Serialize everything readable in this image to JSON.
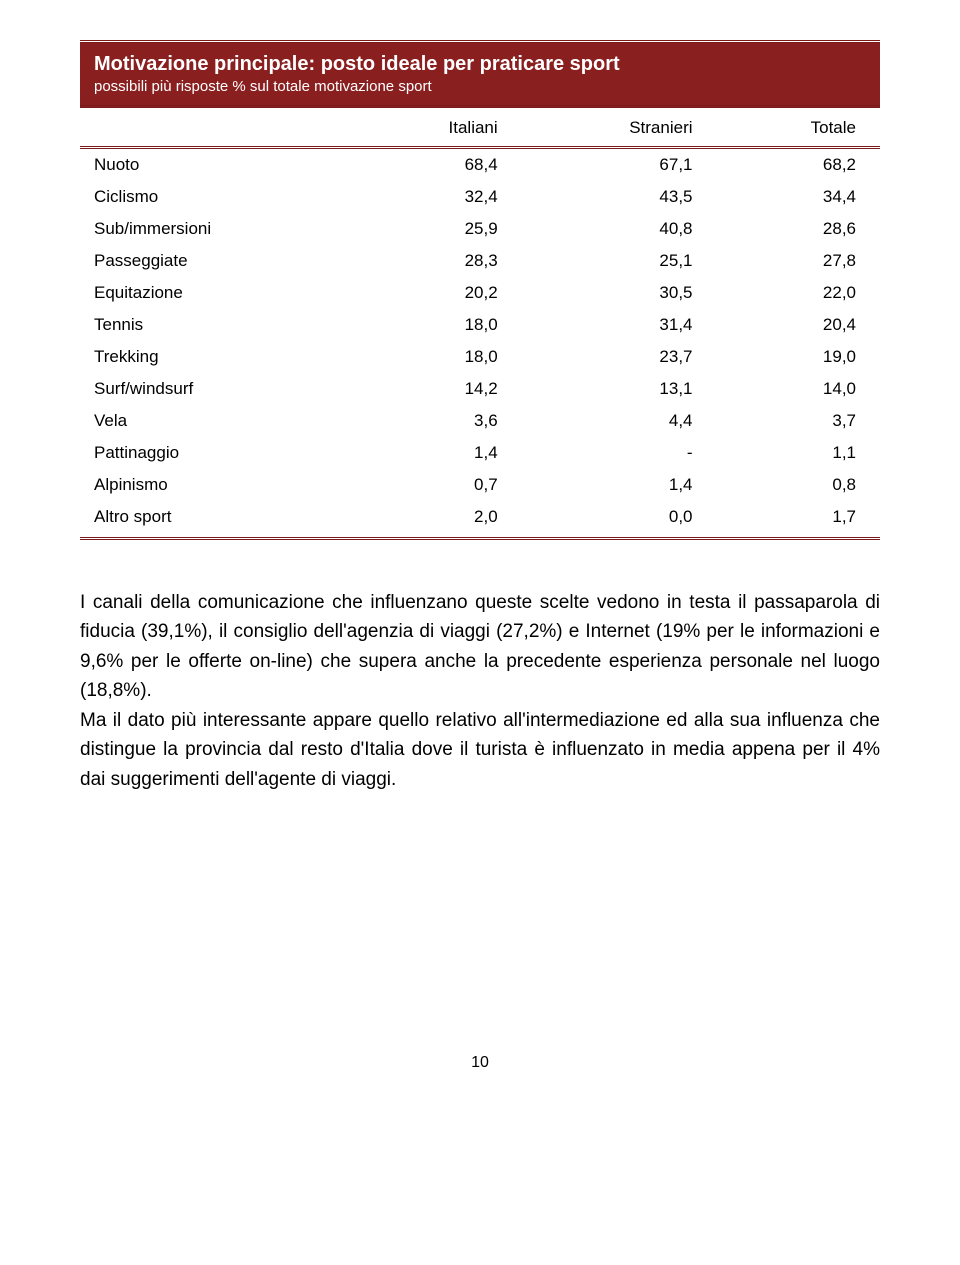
{
  "card": {
    "title": "Motivazione principale: posto ideale per praticare sport",
    "subtitle": "possibili più risposte % sul totale motivazione sport",
    "header_bg": "#8a1f1f",
    "header_fg": "#ffffff",
    "rule_color": "#7a1a1a",
    "columns": [
      "",
      "Italiani",
      "Stranieri",
      "Totale"
    ],
    "rows": [
      {
        "label": "Nuoto",
        "cells": [
          "68,4",
          "67,1",
          "68,2"
        ]
      },
      {
        "label": "Ciclismo",
        "cells": [
          "32,4",
          "43,5",
          "34,4"
        ]
      },
      {
        "label": "Sub/immersioni",
        "cells": [
          "25,9",
          "40,8",
          "28,6"
        ]
      },
      {
        "label": "Passeggiate",
        "cells": [
          "28,3",
          "25,1",
          "27,8"
        ]
      },
      {
        "label": "Equitazione",
        "cells": [
          "20,2",
          "30,5",
          "22,0"
        ]
      },
      {
        "label": "Tennis",
        "cells": [
          "18,0",
          "31,4",
          "20,4"
        ]
      },
      {
        "label": "Trekking",
        "cells": [
          "18,0",
          "23,7",
          "19,0"
        ]
      },
      {
        "label": "Surf/windsurf",
        "cells": [
          "14,2",
          "13,1",
          "14,0"
        ]
      },
      {
        "label": "Vela",
        "cells": [
          "3,6",
          "4,4",
          "3,7"
        ]
      },
      {
        "label": "Pattinaggio",
        "cells": [
          "1,4",
          "-",
          "1,1"
        ]
      },
      {
        "label": "Alpinismo",
        "cells": [
          "0,7",
          "1,4",
          "0,8"
        ]
      },
      {
        "label": "Altro sport",
        "cells": [
          "2,0",
          "0,0",
          "1,7"
        ]
      }
    ]
  },
  "paragraphs": [
    "I canali della comunicazione che influenzano queste scelte vedono in testa il passaparola di fiducia (39,1%), il consiglio dell'agenzia di viaggi (27,2%) e Internet (19% per le informazioni e 9,6% per le offerte on-line) che supera anche la precedente esperienza personale nel luogo (18,8%).",
    "Ma il dato più interessante appare quello relativo all'intermediazione ed alla sua influenza che distingue la provincia dal resto d'Italia dove il turista è influenzato in media appena per il 4% dai suggerimenti dell'agente di viaggi."
  ],
  "page_number": "10",
  "colors": {
    "background": "#ffffff",
    "text": "#000000"
  },
  "typography": {
    "title_fontsize": 20,
    "subtitle_fontsize": 15,
    "table_fontsize": 17,
    "body_fontsize": 19
  }
}
